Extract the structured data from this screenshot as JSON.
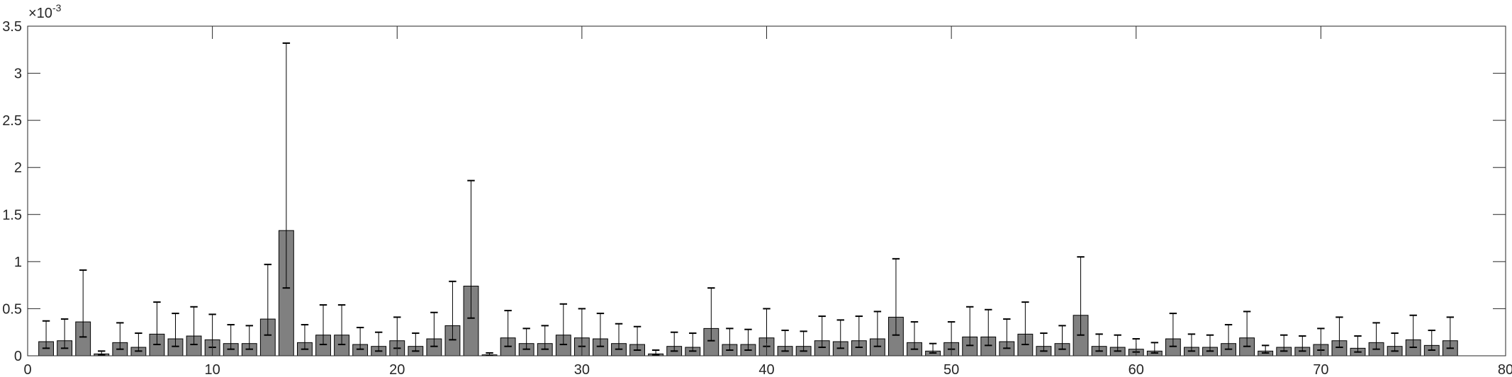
{
  "chart_data": {
    "type": "bar",
    "title": "",
    "xlabel": "",
    "ylabel": "",
    "y_exponent_label": "×10",
    "y_exponent_power": "-3",
    "xlim": [
      0,
      80
    ],
    "ylim": [
      0,
      3.5
    ],
    "x_ticks": [
      0,
      10,
      20,
      30,
      40,
      50,
      60,
      70,
      80
    ],
    "y_ticks": [
      0,
      0.5,
      1,
      1.5,
      2,
      2.5,
      3,
      3.5
    ],
    "x_tick_labels": [
      "0",
      "10",
      "20",
      "30",
      "40",
      "50",
      "60",
      "70",
      "80"
    ],
    "y_tick_labels": [
      "0",
      "0.5",
      "1",
      "1.5",
      "2",
      "2.5",
      "3",
      "3.5"
    ],
    "grid": false,
    "bar_color": "#808080",
    "x": [
      1,
      2,
      3,
      4,
      5,
      6,
      7,
      8,
      9,
      10,
      11,
      12,
      13,
      14,
      15,
      16,
      17,
      18,
      19,
      20,
      21,
      22,
      23,
      24,
      25,
      26,
      27,
      28,
      29,
      30,
      31,
      32,
      33,
      34,
      35,
      36,
      37,
      38,
      39,
      40,
      41,
      42,
      43,
      44,
      45,
      46,
      47,
      48,
      49,
      50,
      51,
      52,
      53,
      54,
      55,
      56,
      57,
      58,
      59,
      60,
      61,
      62,
      63,
      64,
      65,
      66,
      67,
      68,
      69,
      70,
      71,
      72,
      73,
      74,
      75,
      76,
      77
    ],
    "values": [
      0.15,
      0.16,
      0.36,
      0.02,
      0.14,
      0.09,
      0.23,
      0.18,
      0.21,
      0.17,
      0.13,
      0.13,
      0.39,
      1.33,
      0.14,
      0.22,
      0.22,
      0.12,
      0.1,
      0.16,
      0.1,
      0.18,
      0.32,
      0.74,
      0.01,
      0.19,
      0.13,
      0.13,
      0.22,
      0.19,
      0.18,
      0.13,
      0.12,
      0.02,
      0.1,
      0.09,
      0.29,
      0.12,
      0.12,
      0.19,
      0.1,
      0.1,
      0.16,
      0.15,
      0.16,
      0.18,
      0.41,
      0.14,
      0.05,
      0.14,
      0.2,
      0.2,
      0.15,
      0.23,
      0.1,
      0.13,
      0.43,
      0.1,
      0.09,
      0.07,
      0.05,
      0.18,
      0.09,
      0.09,
      0.13,
      0.19,
      0.05,
      0.09,
      0.09,
      0.12,
      0.16,
      0.08,
      0.14,
      0.1,
      0.17,
      0.11,
      0.16
    ],
    "err_lower": [
      0.08,
      0.08,
      0.2,
      0.01,
      0.07,
      0.05,
      0.12,
      0.1,
      0.12,
      0.09,
      0.07,
      0.07,
      0.22,
      0.72,
      0.07,
      0.12,
      0.12,
      0.07,
      0.05,
      0.08,
      0.05,
      0.1,
      0.17,
      0.4,
      0.005,
      0.1,
      0.07,
      0.07,
      0.12,
      0.1,
      0.1,
      0.07,
      0.06,
      0.01,
      0.05,
      0.05,
      0.16,
      0.06,
      0.06,
      0.1,
      0.05,
      0.05,
      0.09,
      0.08,
      0.09,
      0.1,
      0.22,
      0.07,
      0.03,
      0.07,
      0.11,
      0.11,
      0.08,
      0.12,
      0.05,
      0.07,
      0.22,
      0.05,
      0.05,
      0.04,
      0.03,
      0.1,
      0.05,
      0.05,
      0.07,
      0.1,
      0.03,
      0.05,
      0.05,
      0.06,
      0.09,
      0.04,
      0.07,
      0.05,
      0.09,
      0.06,
      0.08
    ],
    "err_upper": [
      0.37,
      0.39,
      0.91,
      0.05,
      0.35,
      0.24,
      0.57,
      0.45,
      0.52,
      0.44,
      0.33,
      0.32,
      0.97,
      3.32,
      0.33,
      0.54,
      0.54,
      0.3,
      0.25,
      0.41,
      0.24,
      0.46,
      0.79,
      1.86,
      0.03,
      0.48,
      0.29,
      0.32,
      0.55,
      0.5,
      0.45,
      0.34,
      0.31,
      0.06,
      0.25,
      0.24,
      0.72,
      0.29,
      0.28,
      0.5,
      0.27,
      0.26,
      0.42,
      0.38,
      0.42,
      0.47,
      1.03,
      0.36,
      0.13,
      0.36,
      0.52,
      0.49,
      0.39,
      0.57,
      0.24,
      0.32,
      1.05,
      0.23,
      0.22,
      0.18,
      0.14,
      0.45,
      0.23,
      0.22,
      0.33,
      0.47,
      0.11,
      0.22,
      0.21,
      0.29,
      0.41,
      0.21,
      0.35,
      0.24,
      0.43,
      0.27,
      0.41
    ]
  }
}
